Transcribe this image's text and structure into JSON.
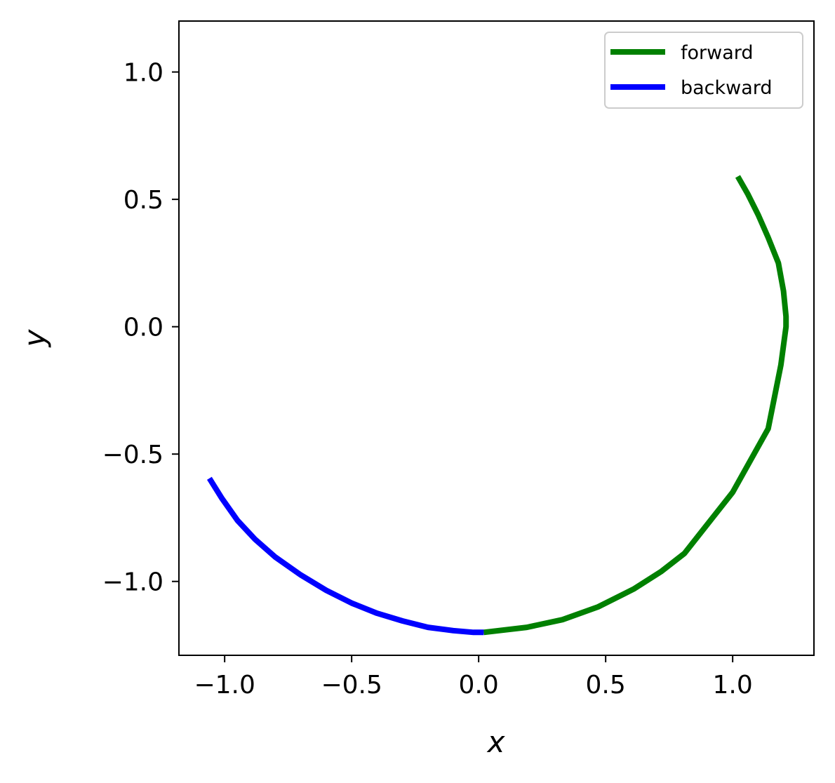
{
  "chart_data": {
    "type": "line",
    "title": "",
    "xlabel": "x",
    "ylabel": "y",
    "xlim": [
      -1.18,
      1.32
    ],
    "ylim": [
      -1.29,
      1.2
    ],
    "xticks": [
      -1.0,
      -0.5,
      0.0,
      0.5,
      1.0
    ],
    "yticks": [
      -1.0,
      -0.5,
      0.0,
      0.5,
      1.0
    ],
    "xtick_labels": [
      "−1.0",
      "−0.5",
      "0.0",
      "0.5",
      "1.0"
    ],
    "ytick_labels": [
      "−1.0",
      "−0.5",
      "0.0",
      "0.5",
      "1.0"
    ],
    "grid": false,
    "legend_position": "top-right",
    "series": [
      {
        "name": "forward",
        "color": "#008000",
        "x": [
          0.02,
          0.19,
          0.33,
          0.47,
          0.61,
          0.72,
          0.81,
          1.0,
          1.14,
          1.19,
          1.21,
          1.21,
          1.2,
          1.18,
          1.14,
          1.1,
          1.06,
          1.02
        ],
        "y": [
          -1.2,
          -1.18,
          -1.15,
          -1.1,
          -1.03,
          -0.96,
          -0.89,
          -0.65,
          -0.4,
          -0.15,
          0.0,
          0.04,
          0.14,
          0.25,
          0.35,
          0.44,
          0.52,
          0.59
        ]
      },
      {
        "name": "backward",
        "color": "#0000ff",
        "x": [
          0.02,
          -0.02,
          -0.1,
          -0.2,
          -0.3,
          -0.4,
          -0.5,
          -0.6,
          -0.7,
          -0.8,
          -0.88,
          -0.95,
          -1.01,
          -1.06
        ],
        "y": [
          -1.2,
          -1.2,
          -1.193,
          -1.18,
          -1.155,
          -1.125,
          -1.085,
          -1.035,
          -0.975,
          -0.905,
          -0.835,
          -0.76,
          -0.675,
          -0.595
        ]
      }
    ]
  }
}
